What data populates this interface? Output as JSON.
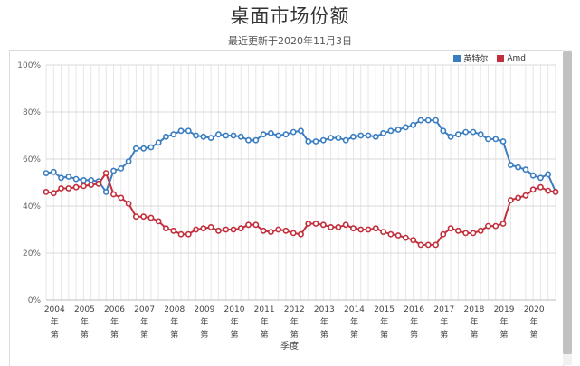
{
  "title": "桌面市场份额",
  "subtitle": "最近更新于2020年11月3日",
  "chart_data": {
    "type": "line",
    "title": "桌面市场份额",
    "subtitle": "最近更新于2020年11月3日",
    "xlabel": "季度",
    "ylabel": "",
    "ylim": [
      0,
      100
    ],
    "y_ticks": [
      "0%",
      "20%",
      "40%",
      "60%",
      "80%",
      "100%"
    ],
    "x_ticks": [
      "2004年第",
      "2005年第",
      "2006年第",
      "2007年第",
      "2008年第",
      "2009年第",
      "2010年第",
      "2011年第",
      "2012年第",
      "2013年第",
      "2014年第",
      "2015年第",
      "2016年第",
      "2017年第",
      "2018年第",
      "2019年第",
      "2020年第"
    ],
    "x": [
      2003.75,
      2004.0,
      2004.25,
      2004.5,
      2004.75,
      2005.0,
      2005.25,
      2005.5,
      2005.75,
      2006.0,
      2006.25,
      2006.5,
      2006.75,
      2007.0,
      2007.25,
      2007.5,
      2007.75,
      2008.0,
      2008.25,
      2008.5,
      2008.75,
      2009.0,
      2009.25,
      2009.5,
      2009.75,
      2010.0,
      2010.25,
      2010.5,
      2010.75,
      2011.0,
      2011.25,
      2011.5,
      2011.75,
      2012.0,
      2012.25,
      2012.5,
      2012.75,
      2013.0,
      2013.25,
      2013.5,
      2013.75,
      2014.0,
      2014.25,
      2014.5,
      2014.75,
      2015.0,
      2015.25,
      2015.5,
      2015.75,
      2016.0,
      2016.25,
      2016.5,
      2016.75,
      2017.0,
      2017.25,
      2017.5,
      2017.75,
      2018.0,
      2018.25,
      2018.5,
      2018.75,
      2019.0,
      2019.25,
      2019.5,
      2019.75,
      2020.0,
      2020.25,
      2020.5,
      2020.75
    ],
    "series": [
      {
        "name": "英特尔",
        "color": "#3a7dc0",
        "values": [
          54,
          54.5,
          52,
          52.5,
          51.5,
          51,
          51,
          50.5,
          46,
          55,
          56,
          59,
          64.5,
          64.5,
          65,
          67,
          69.5,
          70.5,
          72,
          72,
          70,
          69.5,
          69,
          70.5,
          70,
          70,
          69.5,
          68,
          68,
          70.5,
          71,
          70,
          70.5,
          71.5,
          72,
          67.5,
          67.5,
          68,
          69,
          69,
          68,
          69.5,
          70,
          70,
          69.5,
          71,
          72,
          72.5,
          73.5,
          74.5,
          76.5,
          76.5,
          76.5,
          72,
          69.5,
          70.5,
          71.5,
          71.5,
          70.5,
          68.5,
          68.5,
          67.5,
          57.5,
          56.5,
          55.5,
          53,
          52,
          53.5,
          46
        ]
      },
      {
        "name": "Amd",
        "color": "#c22e3b",
        "values": [
          46,
          45.5,
          47.5,
          47.5,
          48,
          48.5,
          49,
          49.5,
          54,
          45,
          43.5,
          41,
          35.5,
          35.5,
          35,
          33.5,
          30.5,
          29.5,
          28,
          28,
          30,
          30.5,
          31,
          29.5,
          30,
          30,
          30.5,
          32,
          32,
          29.5,
          29,
          30,
          29.5,
          28.5,
          28,
          32.5,
          32.5,
          32,
          31,
          31,
          32,
          30.5,
          30,
          30,
          30.5,
          29,
          28,
          27.5,
          26.5,
          25.5,
          23.5,
          23.5,
          23.5,
          28,
          30.5,
          29.5,
          28.5,
          28.5,
          29.5,
          31.5,
          31.5,
          32.5,
          42.5,
          43.5,
          44.5,
          47,
          48,
          46.5,
          46
        ]
      }
    ],
    "grid": true,
    "legend_position": "top-right"
  }
}
